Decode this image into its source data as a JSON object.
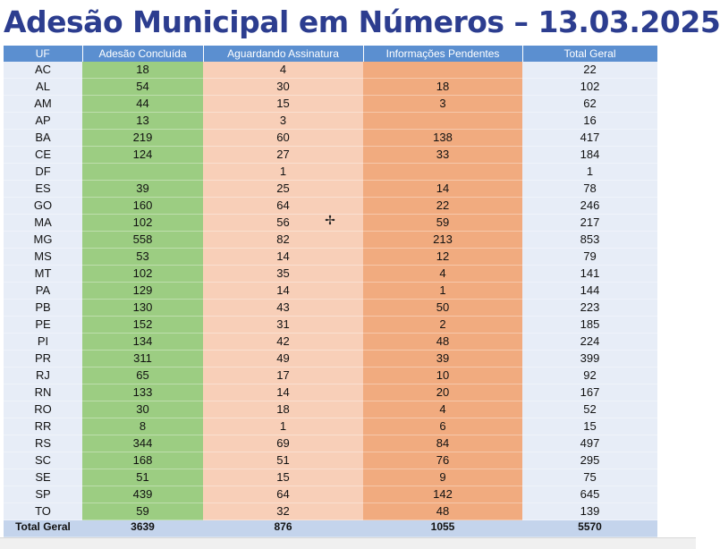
{
  "title": "Adesão Municipal em Números – 13.03.2025",
  "headers": [
    "UF",
    "Adesão Concluída",
    "Aguardando Assinatura",
    "Informações Pendentes",
    "Total Geral"
  ],
  "rows": [
    [
      "AC",
      "18",
      "4",
      "",
      "22"
    ],
    [
      "AL",
      "54",
      "30",
      "18",
      "102"
    ],
    [
      "AM",
      "44",
      "15",
      "3",
      "62"
    ],
    [
      "AP",
      "13",
      "3",
      "",
      "16"
    ],
    [
      "BA",
      "219",
      "60",
      "138",
      "417"
    ],
    [
      "CE",
      "124",
      "27",
      "33",
      "184"
    ],
    [
      "DF",
      "",
      "1",
      "",
      "1"
    ],
    [
      "ES",
      "39",
      "25",
      "14",
      "78"
    ],
    [
      "GO",
      "160",
      "64",
      "22",
      "246"
    ],
    [
      "MA",
      "102",
      "56",
      "59",
      "217"
    ],
    [
      "MG",
      "558",
      "82",
      "213",
      "853"
    ],
    [
      "MS",
      "53",
      "14",
      "12",
      "79"
    ],
    [
      "MT",
      "102",
      "35",
      "4",
      "141"
    ],
    [
      "PA",
      "129",
      "14",
      "1",
      "144"
    ],
    [
      "PB",
      "130",
      "43",
      "50",
      "223"
    ],
    [
      "PE",
      "152",
      "31",
      "2",
      "185"
    ],
    [
      "PI",
      "134",
      "42",
      "48",
      "224"
    ],
    [
      "PR",
      "311",
      "49",
      "39",
      "399"
    ],
    [
      "RJ",
      "65",
      "17",
      "10",
      "92"
    ],
    [
      "RN",
      "133",
      "14",
      "20",
      "167"
    ],
    [
      "RO",
      "30",
      "18",
      "4",
      "52"
    ],
    [
      "RR",
      "8",
      "1",
      "6",
      "15"
    ],
    [
      "RS",
      "344",
      "69",
      "84",
      "497"
    ],
    [
      "SC",
      "168",
      "51",
      "76",
      "295"
    ],
    [
      "SE",
      "51",
      "15",
      "9",
      "75"
    ],
    [
      "SP",
      "439",
      "64",
      "142",
      "645"
    ],
    [
      "TO",
      "59",
      "32",
      "48",
      "139"
    ]
  ],
  "total": [
    "Total Geral",
    "3639",
    "876",
    "1055",
    "5570"
  ],
  "colors": {
    "title": "#2c3d8f",
    "header": "#5b8fd0",
    "concluida": "#9ccd82",
    "aguardando": "#f8cfb8",
    "pendentes": "#f1ab7f",
    "uf_total": "#e7edf7"
  },
  "cursor_icon": "move-cursor-icon"
}
